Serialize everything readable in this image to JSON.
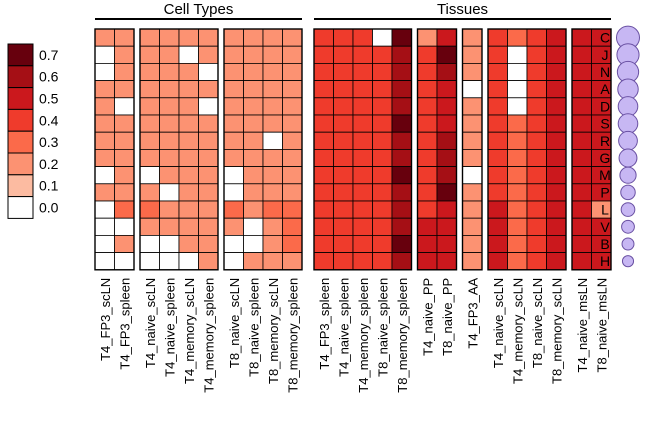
{
  "chart_data": {
    "type": "heatmap",
    "title": "",
    "xlabel": "",
    "ylabel": "",
    "groups": [
      {
        "name": "Cell Types",
        "blocks": [
          [
            "T4_FP3_scLN",
            "T4_FP3_spleen"
          ],
          [
            "T4_naive_scLN",
            "T4_naive_spleen",
            "T4_memory_scLN",
            "T4_memory_spleen"
          ],
          [
            "T8_naive_scLN",
            "T8_naive_spleen",
            "T8_memory_scLN",
            "T8_memory_spleen"
          ]
        ]
      },
      {
        "name": "Tissues",
        "blocks": [
          [
            "T4_FP3_spleen",
            "T4_naive_spleen",
            "T4_memory_spleen",
            "T8_naive_spleen",
            "T8_memory_spleen"
          ],
          [
            "T4_naive_PP",
            "T8_naive_PP"
          ],
          [
            "T4_FP3_AA"
          ],
          [
            "T4_naive_scLN",
            "T4_memory_scLN",
            "T8_naive_scLN",
            "T8_memory_scLN"
          ],
          [
            "T4_naive_msLN",
            "T8_naive_msLN"
          ]
        ]
      }
    ],
    "rows": [
      "C",
      "J",
      "N",
      "A",
      "D",
      "S",
      "R",
      "G",
      "M",
      "P",
      "L",
      "V",
      "B",
      "H"
    ],
    "row_sizes": [
      10,
      9.5,
      9,
      8.5,
      8,
      8,
      7.5,
      7,
      6,
      5,
      4.5,
      4,
      3.5,
      3
    ],
    "legend": {
      "position": "left",
      "ticks": [
        "0.7",
        "0.6",
        "0.5",
        "0.4",
        "0.3",
        "0.2",
        "0.1",
        "0.0"
      ],
      "colors": [
        "#67000d",
        "#a50f15",
        "#cb181d",
        "#ef3b2c",
        "#fb6a4a",
        "#fc9272",
        "#fcbba1",
        "#ffffff"
      ]
    },
    "values": [
      [
        0.15,
        0.15,
        0.15,
        0.15,
        0.15,
        0.15,
        0.15,
        0.15,
        0.15,
        0.15,
        0.4,
        0.35,
        0.35,
        0.0,
        0.65,
        0.15,
        0.45,
        0.15,
        0.35,
        0.25,
        0.35,
        0.45,
        0.5,
        0.45
      ],
      [
        0.0,
        0.15,
        0.15,
        0.15,
        0.0,
        0.15,
        0.15,
        0.15,
        0.15,
        0.15,
        0.4,
        0.35,
        0.35,
        0.35,
        0.6,
        0.4,
        0.65,
        0.15,
        0.35,
        0.0,
        0.35,
        0.45,
        0.5,
        0.45
      ],
      [
        0.0,
        0.15,
        0.15,
        0.15,
        0.15,
        0.0,
        0.15,
        0.15,
        0.15,
        0.15,
        0.4,
        0.35,
        0.35,
        0.35,
        0.6,
        0.4,
        0.55,
        0.15,
        0.35,
        0.0,
        0.35,
        0.45,
        0.5,
        0.45
      ],
      [
        0.15,
        0.15,
        0.15,
        0.15,
        0.15,
        0.15,
        0.15,
        0.15,
        0.15,
        0.15,
        0.4,
        0.35,
        0.35,
        0.35,
        0.6,
        0.4,
        0.5,
        0.0,
        0.35,
        0.0,
        0.35,
        0.45,
        0.5,
        0.45
      ],
      [
        0.15,
        0.0,
        0.15,
        0.15,
        0.15,
        0.0,
        0.15,
        0.15,
        0.15,
        0.15,
        0.4,
        0.35,
        0.35,
        0.35,
        0.6,
        0.4,
        0.5,
        0.15,
        0.35,
        0.0,
        0.35,
        0.45,
        0.5,
        0.45
      ],
      [
        0.15,
        0.15,
        0.15,
        0.15,
        0.15,
        0.15,
        0.15,
        0.15,
        0.15,
        0.15,
        0.4,
        0.35,
        0.35,
        0.35,
        0.65,
        0.4,
        0.5,
        0.15,
        0.35,
        0.25,
        0.35,
        0.45,
        0.5,
        0.45
      ],
      [
        0.15,
        0.15,
        0.15,
        0.15,
        0.15,
        0.15,
        0.15,
        0.15,
        0.0,
        0.15,
        0.4,
        0.35,
        0.35,
        0.35,
        0.6,
        0.4,
        0.6,
        0.15,
        0.35,
        0.25,
        0.35,
        0.45,
        0.5,
        0.45
      ],
      [
        0.15,
        0.15,
        0.15,
        0.15,
        0.15,
        0.15,
        0.15,
        0.15,
        0.15,
        0.15,
        0.4,
        0.35,
        0.35,
        0.35,
        0.6,
        0.4,
        0.6,
        0.15,
        0.35,
        0.25,
        0.35,
        0.45,
        0.5,
        0.45
      ],
      [
        0.0,
        0.15,
        0.0,
        0.15,
        0.15,
        0.15,
        0.0,
        0.15,
        0.15,
        0.15,
        0.4,
        0.35,
        0.35,
        0.35,
        0.65,
        0.4,
        0.55,
        0.0,
        0.35,
        0.25,
        0.35,
        0.45,
        0.5,
        0.45
      ],
      [
        0.15,
        0.15,
        0.15,
        0.0,
        0.15,
        0.15,
        0.0,
        0.15,
        0.15,
        0.15,
        0.4,
        0.35,
        0.35,
        0.35,
        0.6,
        0.4,
        0.65,
        0.15,
        0.35,
        0.25,
        0.35,
        0.45,
        0.5,
        0.45
      ],
      [
        0.0,
        0.25,
        0.25,
        0.15,
        0.15,
        0.15,
        0.25,
        0.15,
        0.25,
        0.25,
        0.4,
        0.35,
        0.35,
        0.35,
        0.6,
        0.4,
        0.5,
        0.15,
        0.45,
        0.25,
        0.35,
        0.45,
        0.5,
        0.15
      ],
      [
        0.0,
        0.0,
        0.15,
        0.15,
        0.15,
        0.15,
        0.15,
        0.0,
        0.15,
        0.25,
        0.4,
        0.35,
        0.35,
        0.35,
        0.6,
        0.45,
        0.5,
        0.15,
        0.45,
        0.25,
        0.35,
        0.45,
        0.5,
        0.45
      ],
      [
        0.0,
        0.15,
        0.0,
        0.0,
        0.15,
        0.15,
        0.0,
        0.0,
        0.15,
        0.25,
        0.4,
        0.35,
        0.35,
        0.35,
        0.65,
        0.45,
        0.5,
        0.15,
        0.45,
        0.25,
        0.35,
        0.45,
        0.5,
        0.45
      ],
      [
        0.0,
        0.0,
        0.0,
        0.0,
        0.0,
        0.15,
        0.0,
        0.15,
        0.15,
        0.15,
        0.4,
        0.35,
        0.35,
        0.35,
        0.6,
        0.45,
        0.5,
        0.15,
        0.45,
        0.25,
        0.35,
        0.45,
        0.5,
        0.45
      ]
    ],
    "circle_color": "#c7b7f3",
    "circle_stroke": "#6a51a3"
  }
}
